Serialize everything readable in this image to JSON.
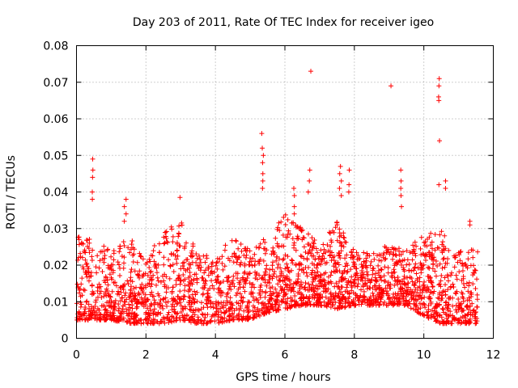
{
  "chart_data": {
    "type": "scatter",
    "title": "Day 203 of 2011, Rate Of TEC Index for receiver igeo",
    "xlabel": "GPS time / hours",
    "ylabel": "ROTI / TECUs",
    "xlim": [
      0,
      12
    ],
    "ylim": [
      0,
      0.08
    ],
    "xticks": [
      0,
      2,
      4,
      6,
      8,
      10,
      12
    ],
    "xtick_labels": [
      "0",
      "2",
      "4",
      "6",
      "8",
      "10",
      "12"
    ],
    "yticks": [
      0,
      0.01,
      0.02,
      0.03,
      0.04,
      0.05,
      0.06,
      0.07,
      0.08
    ],
    "ytick_labels": [
      "0",
      "0.01",
      "0.02",
      "0.03",
      "0.04",
      "0.05",
      "0.06",
      "0.07",
      "0.08"
    ],
    "grid": true,
    "marker": "plus",
    "color": "#ff0000",
    "series": [
      {
        "name": "ROTI",
        "x_range": [
          0.0,
          11.55
        ],
        "band": [
          {
            "x": 0.0,
            "low": 0.005,
            "high": 0.028
          },
          {
            "x": 0.5,
            "low": 0.005,
            "high": 0.027
          },
          {
            "x": 1.0,
            "low": 0.005,
            "high": 0.024
          },
          {
            "x": 1.5,
            "low": 0.004,
            "high": 0.028
          },
          {
            "x": 2.0,
            "low": 0.004,
            "high": 0.022
          },
          {
            "x": 2.5,
            "low": 0.004,
            "high": 0.03
          },
          {
            "x": 3.0,
            "low": 0.005,
            "high": 0.032
          },
          {
            "x": 3.5,
            "low": 0.004,
            "high": 0.024
          },
          {
            "x": 4.0,
            "low": 0.004,
            "high": 0.022
          },
          {
            "x": 4.5,
            "low": 0.005,
            "high": 0.028
          },
          {
            "x": 5.0,
            "low": 0.005,
            "high": 0.024
          },
          {
            "x": 5.5,
            "low": 0.007,
            "high": 0.028
          },
          {
            "x": 6.0,
            "low": 0.008,
            "high": 0.034
          },
          {
            "x": 6.5,
            "low": 0.009,
            "high": 0.03
          },
          {
            "x": 7.0,
            "low": 0.009,
            "high": 0.026
          },
          {
            "x": 7.5,
            "low": 0.008,
            "high": 0.032
          },
          {
            "x": 8.0,
            "low": 0.009,
            "high": 0.024
          },
          {
            "x": 8.5,
            "low": 0.009,
            "high": 0.023
          },
          {
            "x": 9.0,
            "low": 0.009,
            "high": 0.026
          },
          {
            "x": 9.5,
            "low": 0.009,
            "high": 0.025
          },
          {
            "x": 10.0,
            "low": 0.006,
            "high": 0.028
          },
          {
            "x": 10.5,
            "low": 0.004,
            "high": 0.03
          },
          {
            "x": 11.0,
            "low": 0.004,
            "high": 0.024
          },
          {
            "x": 11.55,
            "low": 0.004,
            "high": 0.025
          }
        ],
        "spikes": [
          {
            "x": 0.45,
            "values": [
              0.049,
              0.046,
              0.044,
              0.04,
              0.038
            ]
          },
          {
            "x": 1.4,
            "values": [
              0.038,
              0.036,
              0.034,
              0.032
            ]
          },
          {
            "x": 3.0,
            "values": [
              0.0385
            ]
          },
          {
            "x": 5.35,
            "values": [
              0.056,
              0.052,
              0.05,
              0.048,
              0.045,
              0.043,
              0.041
            ]
          },
          {
            "x": 6.25,
            "values": [
              0.041,
              0.039,
              0.036,
              0.034
            ]
          },
          {
            "x": 6.75,
            "values": [
              0.073
            ]
          },
          {
            "x": 6.7,
            "values": [
              0.046,
              0.043,
              0.04
            ]
          },
          {
            "x": 7.6,
            "values": [
              0.047,
              0.045,
              0.043,
              0.041,
              0.039
            ]
          },
          {
            "x": 7.85,
            "values": [
              0.046,
              0.042,
              0.04
            ]
          },
          {
            "x": 9.05,
            "values": [
              0.069
            ]
          },
          {
            "x": 9.35,
            "values": [
              0.046,
              0.043,
              0.041,
              0.039,
              0.036
            ]
          },
          {
            "x": 10.45,
            "values": [
              0.071,
              0.069,
              0.066,
              0.065,
              0.054,
              0.042
            ]
          },
          {
            "x": 10.65,
            "values": [
              0.043,
              0.041
            ]
          },
          {
            "x": 11.3,
            "values": [
              0.032,
              0.031
            ]
          }
        ]
      }
    ]
  }
}
